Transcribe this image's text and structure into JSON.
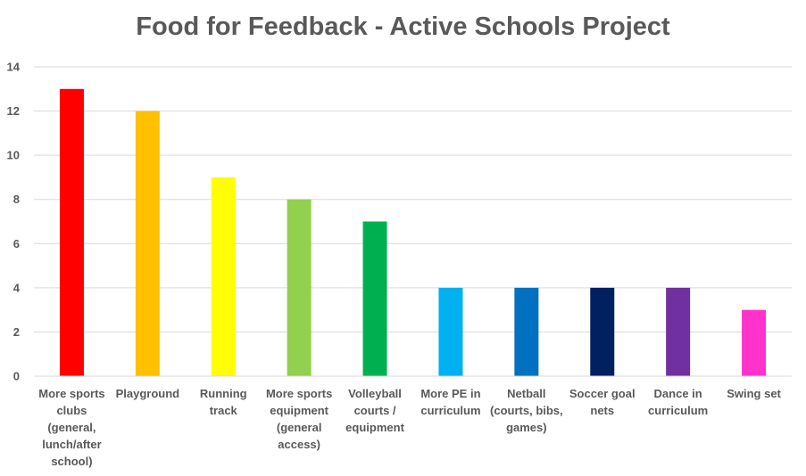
{
  "chart_data": {
    "type": "bar",
    "title": "Food for Feedback - Active Schools Project",
    "xlabel": "",
    "ylabel": "",
    "ylim": [
      0,
      14
    ],
    "yticks": [
      0,
      2,
      4,
      6,
      8,
      10,
      12,
      14
    ],
    "grid": true,
    "legend": "none",
    "categories": [
      [
        "More sports",
        "clubs",
        "(general,",
        "lunch/after",
        "school)"
      ],
      [
        "Playground"
      ],
      [
        "Running",
        "track"
      ],
      [
        "More sports",
        "equipment",
        "(general",
        "access)"
      ],
      [
        "Volleyball",
        "courts /",
        "equipment"
      ],
      [
        "More PE in",
        "curriculum"
      ],
      [
        "Netball",
        "(courts, bibs,",
        "games)"
      ],
      [
        "Soccer goal",
        "nets"
      ],
      [
        "Dance in",
        "curriculum"
      ],
      [
        "Swing set"
      ]
    ],
    "values": [
      13,
      12,
      9,
      8,
      7,
      4,
      4,
      4,
      4,
      3
    ],
    "colors": [
      "#ff0000",
      "#ffc000",
      "#ffff00",
      "#92d050",
      "#00b050",
      "#00b0f0",
      "#0070c0",
      "#002060",
      "#7030a0",
      "#ff33cc"
    ]
  }
}
